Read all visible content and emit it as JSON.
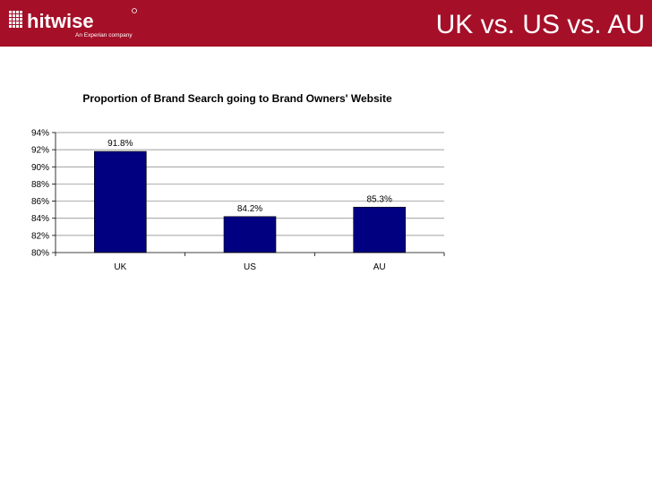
{
  "header": {
    "title": "UK vs. US vs. AU",
    "logo_text": "hitwise",
    "logo_tagline": "An Experian company",
    "accent_color": "#a50f28"
  },
  "chart_data": {
    "type": "bar",
    "title": "Proportion of Brand Search going to Brand Owners' Website",
    "categories": [
      "UK",
      "US",
      "AU"
    ],
    "values": [
      91.8,
      84.2,
      85.3
    ],
    "data_labels": [
      "91.8%",
      "84.2%",
      "85.3%"
    ],
    "ylim": [
      80,
      94
    ],
    "yticks": [
      80,
      82,
      84,
      86,
      88,
      90,
      92,
      94
    ],
    "ytick_labels": [
      "80%",
      "82%",
      "84%",
      "86%",
      "88%",
      "90%",
      "92%",
      "94%"
    ],
    "xlabel": "",
    "ylabel": "",
    "grid": true,
    "bar_color": "#000080",
    "legend": "none"
  }
}
